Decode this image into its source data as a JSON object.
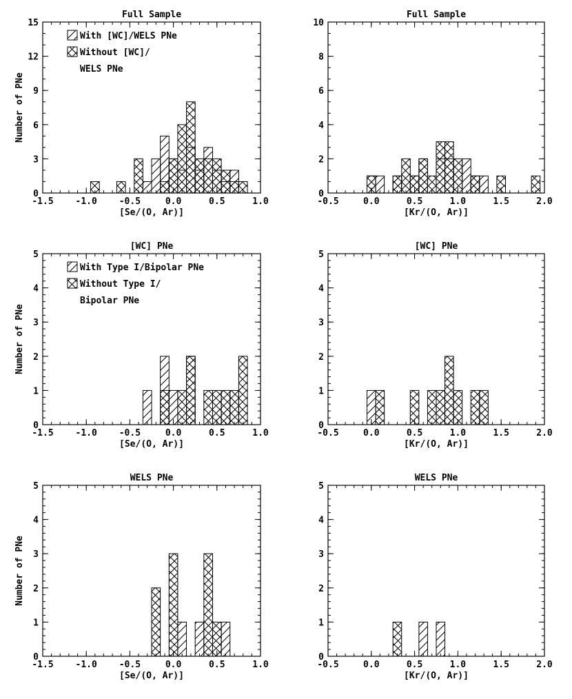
{
  "chart_data": [
    {
      "id": "p1",
      "type": "bar",
      "title": "Full Sample",
      "xlabel": "[Se/(O, Ar)]",
      "ylabel": "Number of PNe",
      "xlim": [
        -1.5,
        1.0
      ],
      "ylim": [
        0,
        15
      ],
      "xticks": [
        "-1.5",
        "-1.0",
        "-0.5",
        "0.0",
        "0.5",
        "1.0"
      ],
      "yticks": [
        "0",
        "3",
        "6",
        "9",
        "12",
        "15"
      ],
      "bin_width": 0.1,
      "legend": [
        {
          "pattern": "hatch",
          "lines": [
            "With [WC]/WELS PNe"
          ]
        },
        {
          "pattern": "cross",
          "lines": [
            "Without [WC]/",
            "WELS PNe"
          ]
        }
      ],
      "series": [
        {
          "name": "Without",
          "pattern": "cross",
          "x": [
            -0.9,
            -0.6,
            -0.4,
            -0.1,
            0.0,
            0.1,
            0.2,
            0.3,
            0.4,
            0.5,
            0.6,
            0.7,
            0.8
          ],
          "values": [
            1,
            1,
            3,
            1,
            3,
            6,
            8,
            3,
            3,
            3,
            2,
            1,
            1
          ]
        },
        {
          "name": "With",
          "pattern": "hatch",
          "x": [
            -0.3,
            -0.2,
            -0.1,
            0.0,
            0.1,
            0.2,
            0.3,
            0.4,
            0.5,
            0.6,
            0.7
          ],
          "values": [
            1,
            3,
            5,
            3,
            2,
            4,
            2,
            4,
            2,
            1,
            2
          ]
        }
      ]
    },
    {
      "id": "p2",
      "type": "bar",
      "title": "Full Sample",
      "xlabel": "[Kr/(O, Ar)]",
      "ylabel": "",
      "xlim": [
        -0.5,
        2.0
      ],
      "ylim": [
        0,
        10
      ],
      "xticks": [
        "-0.5",
        "0.0",
        "0.5",
        "1.0",
        "1.5",
        "2.0"
      ],
      "yticks": [
        "0",
        "2",
        "4",
        "6",
        "8",
        "10"
      ],
      "bin_width": 0.1,
      "series": [
        {
          "name": "Without",
          "pattern": "cross",
          "x": [
            0.0,
            0.3,
            0.4,
            0.5,
            0.6,
            0.7,
            0.8,
            0.9,
            1.0,
            1.2,
            1.5,
            1.9
          ],
          "values": [
            1,
            1,
            2,
            1,
            2,
            1,
            3,
            3,
            2,
            1,
            1,
            1
          ]
        },
        {
          "name": "With",
          "pattern": "hatch",
          "x": [
            0.0,
            0.1,
            0.3,
            0.5,
            0.6,
            0.8,
            0.9,
            1.1,
            1.2,
            1.3
          ],
          "values": [
            1,
            1,
            1,
            1,
            2,
            2,
            2,
            2,
            1,
            1
          ]
        }
      ]
    },
    {
      "id": "p3",
      "type": "bar",
      "title": "[WC] PNe",
      "xlabel": "[Se/(O, Ar)]",
      "ylabel": "Number of PNe",
      "xlim": [
        -1.5,
        1.0
      ],
      "ylim": [
        0,
        5
      ],
      "xticks": [
        "-1.5",
        "-1.0",
        "-0.5",
        "0.0",
        "0.5",
        "1.0"
      ],
      "yticks": [
        "0",
        "1",
        "2",
        "3",
        "4",
        "5"
      ],
      "bin_width": 0.1,
      "legend": [
        {
          "pattern": "hatch",
          "lines": [
            "With Type I/Bipolar PNe"
          ]
        },
        {
          "pattern": "cross",
          "lines": [
            "Without Type I/",
            "Bipolar PNe"
          ]
        }
      ],
      "series": [
        {
          "name": "Without",
          "pattern": "cross",
          "x": [
            -0.1,
            0.1,
            0.2,
            0.4,
            0.5,
            0.6,
            0.7,
            0.8
          ],
          "values": [
            1,
            1,
            2,
            1,
            1,
            1,
            1,
            2
          ]
        },
        {
          "name": "With",
          "pattern": "hatch",
          "x": [
            -0.3,
            -0.1,
            0.0,
            0.2
          ],
          "values": [
            1,
            2,
            1,
            2
          ]
        }
      ]
    },
    {
      "id": "p4",
      "type": "bar",
      "title": "[WC] PNe",
      "xlabel": "[Kr/(O, Ar)]",
      "ylabel": "",
      "xlim": [
        -0.5,
        2.0
      ],
      "ylim": [
        0,
        5
      ],
      "xticks": [
        "-0.5",
        "0.0",
        "0.5",
        "1.0",
        "1.5",
        "2.0"
      ],
      "yticks": [
        "0",
        "1",
        "2",
        "3",
        "4",
        "5"
      ],
      "bin_width": 0.1,
      "series": [
        {
          "name": "Without",
          "pattern": "cross",
          "x": [
            0.1,
            0.5,
            0.7,
            0.8,
            0.9,
            1.0,
            1.2,
            1.3
          ],
          "values": [
            1,
            1,
            1,
            1,
            2,
            1,
            1,
            1
          ]
        },
        {
          "name": "With",
          "pattern": "hatch",
          "x": [
            0.0
          ],
          "values": [
            1
          ]
        }
      ]
    },
    {
      "id": "p5",
      "type": "bar",
      "title": "WELS PNe",
      "xlabel": "[Se/(O, Ar)]",
      "ylabel": "Number of PNe",
      "xlim": [
        -1.5,
        1.0
      ],
      "ylim": [
        0,
        5
      ],
      "xticks": [
        "-1.5",
        "-1.0",
        "-0.5",
        "0.0",
        "0.5",
        "1.0"
      ],
      "yticks": [
        "0",
        "1",
        "2",
        "3",
        "4",
        "5"
      ],
      "bin_width": 0.1,
      "series": [
        {
          "name": "Without",
          "pattern": "cross",
          "x": [
            -0.2,
            0.0,
            0.4,
            0.5
          ],
          "values": [
            2,
            3,
            3,
            1
          ]
        },
        {
          "name": "With",
          "pattern": "hatch",
          "x": [
            0.1,
            0.3,
            0.6
          ],
          "values": [
            1,
            1,
            1
          ]
        }
      ]
    },
    {
      "id": "p6",
      "type": "bar",
      "title": "WELS PNe",
      "xlabel": "[Kr/(O, Ar)]",
      "ylabel": "",
      "xlim": [
        -0.5,
        2.0
      ],
      "ylim": [
        0,
        5
      ],
      "xticks": [
        "-0.5",
        "0.0",
        "0.5",
        "1.0",
        "1.5",
        "2.0"
      ],
      "yticks": [
        "0",
        "1",
        "2",
        "3",
        "4",
        "5"
      ],
      "bin_width": 0.1,
      "series": [
        {
          "name": "Without",
          "pattern": "cross",
          "x": [
            0.3
          ],
          "values": [
            1
          ]
        },
        {
          "name": "With",
          "pattern": "hatch",
          "x": [
            0.6,
            0.8
          ],
          "values": [
            1,
            1
          ]
        }
      ]
    }
  ]
}
